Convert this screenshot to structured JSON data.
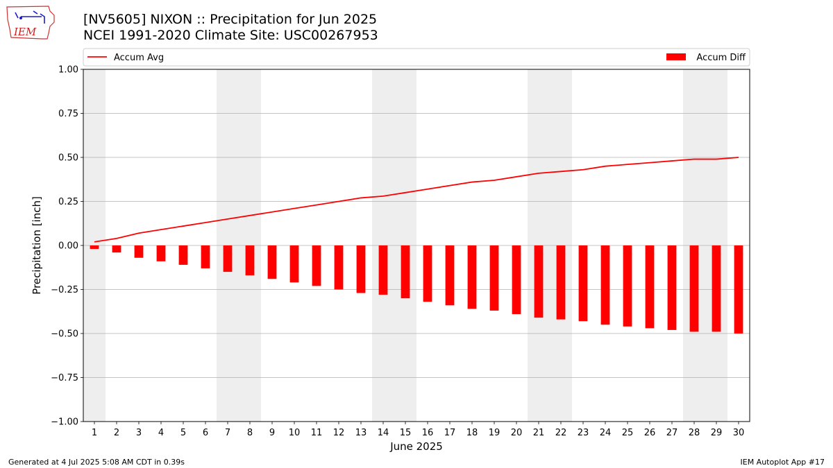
{
  "header": {
    "title_line1": "[NV5605] NIXON :: Precipitation for Jun 2025",
    "title_line2": "NCEI 1991-2020 Climate Site: USC00267953",
    "logo_text": "IEM"
  },
  "footer": {
    "generated": "Generated at 4 Jul 2025 5:08 AM CDT in 0.39s",
    "app": "IEM Autoplot App #17"
  },
  "colors": {
    "series": "#ff0000",
    "weekend_band": "#eeeeee",
    "grid": "#b0b0b0"
  },
  "chart_data": {
    "type": "bar",
    "xlabel": "June 2025",
    "ylabel": "Precipitation [inch]",
    "ylim": [
      -1.0,
      1.0
    ],
    "yticks": [
      -1.0,
      -0.75,
      -0.5,
      -0.25,
      0.0,
      0.25,
      0.5,
      0.75,
      1.0
    ],
    "ytick_labels": [
      "−1.00",
      "−0.75",
      "−0.50",
      "−0.25",
      "0.00",
      "0.25",
      "0.50",
      "0.75",
      "1.00"
    ],
    "grid": "horizontal",
    "legend": "top",
    "categories": [
      "1",
      "2",
      "3",
      "4",
      "5",
      "6",
      "7",
      "8",
      "9",
      "10",
      "11",
      "12",
      "13",
      "14",
      "15",
      "16",
      "17",
      "18",
      "19",
      "20",
      "21",
      "22",
      "23",
      "24",
      "25",
      "26",
      "27",
      "28",
      "29",
      "30"
    ],
    "weekend_days": [
      1,
      7,
      8,
      14,
      15,
      21,
      22,
      28,
      29
    ],
    "series": [
      {
        "name": "Accum Avg",
        "kind": "line",
        "values": [
          0.02,
          0.04,
          0.07,
          0.09,
          0.11,
          0.13,
          0.15,
          0.17,
          0.19,
          0.21,
          0.23,
          0.25,
          0.27,
          0.28,
          0.3,
          0.32,
          0.34,
          0.36,
          0.37,
          0.39,
          0.41,
          0.42,
          0.43,
          0.45,
          0.46,
          0.47,
          0.48,
          0.49,
          0.49,
          0.5
        ]
      },
      {
        "name": "Accum Diff",
        "kind": "bar",
        "values": [
          -0.02,
          -0.04,
          -0.07,
          -0.09,
          -0.11,
          -0.13,
          -0.15,
          -0.17,
          -0.19,
          -0.21,
          -0.23,
          -0.25,
          -0.27,
          -0.28,
          -0.3,
          -0.32,
          -0.34,
          -0.36,
          -0.37,
          -0.39,
          -0.41,
          -0.42,
          -0.43,
          -0.45,
          -0.46,
          -0.47,
          -0.48,
          -0.49,
          -0.49,
          -0.5
        ]
      }
    ]
  }
}
